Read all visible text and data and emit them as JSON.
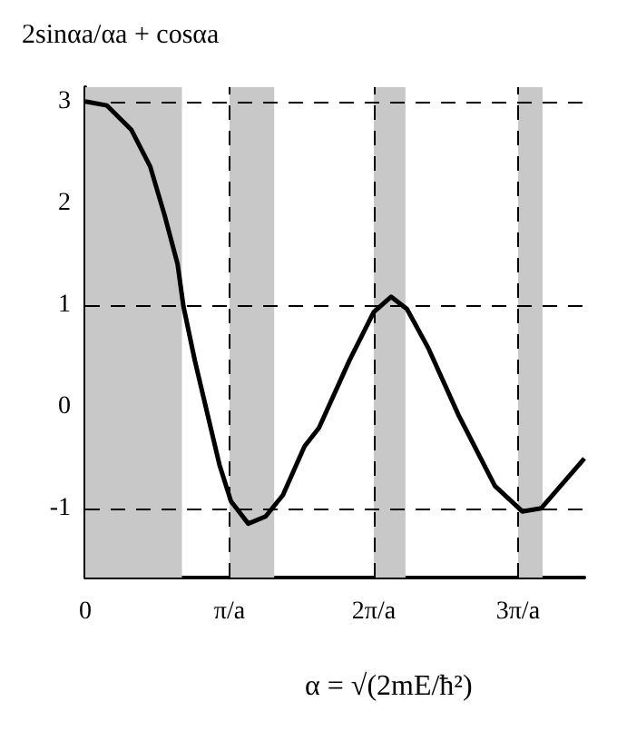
{
  "chart_data": {
    "type": "line",
    "ylabel": "2sinαa/αa + cosαa",
    "xlabel": "α = √(2mE/ħ²)",
    "x": [
      0,
      0.15,
      0.32,
      0.45,
      0.55,
      0.64,
      0.68,
      0.76,
      0.85,
      0.93,
      1.01,
      1.13,
      1.25,
      1.37,
      1.52,
      1.62,
      1.83,
      2.0,
      2.12,
      2.23,
      2.38,
      2.59,
      2.84,
      3.03,
      3.16,
      3.46
    ],
    "series": [
      {
        "color": "#000000",
        "values": [
          3,
          2.96,
          2.72,
          2.36,
          1.88,
          1.4,
          0.99,
          0.45,
          -0.09,
          -0.57,
          -0.93,
          -1.15,
          -1.08,
          -0.87,
          -0.39,
          -0.21,
          0.45,
          0.93,
          1.08,
          0.96,
          0.57,
          -0.09,
          -0.78,
          -1.03,
          -1.0,
          -0.51
        ]
      }
    ],
    "xlim": [
      0,
      3.46
    ],
    "ylim": [
      -1.68,
      3.14
    ],
    "xticks": [
      0,
      {
        "value": 1,
        "label": "π/a"
      },
      {
        "value": 2,
        "label": "2π/a"
      },
      {
        "value": 3,
        "label": "3π/a"
      }
    ],
    "yticks": [
      -1,
      0,
      1,
      2,
      3
    ],
    "ref_lines": [
      {
        "axis": "y",
        "value": 3,
        "line_style": "dashed"
      },
      {
        "axis": "y",
        "value": 1,
        "line_style": "dashed"
      },
      {
        "axis": "y",
        "value": -1,
        "line_style": "dashed"
      },
      {
        "axis": "x",
        "value": 1,
        "line_style": "dashed"
      },
      {
        "axis": "x",
        "value": 2,
        "line_style": "dashed"
      },
      {
        "axis": "x",
        "value": 3,
        "line_style": "dashed"
      }
    ],
    "bands": [
      {
        "axis": "x",
        "from": 0,
        "to": 0.67,
        "color": "#c8c8c8"
      },
      {
        "axis": "x",
        "from": 1.0,
        "to": 1.31,
        "color": "#c8c8c8"
      },
      {
        "axis": "x",
        "from": 2.0,
        "to": 2.22,
        "color": "#c8c8c8"
      },
      {
        "axis": "x",
        "from": 3.0,
        "to": 3.17,
        "color": "#c8c8c8"
      }
    ],
    "grid": false
  }
}
